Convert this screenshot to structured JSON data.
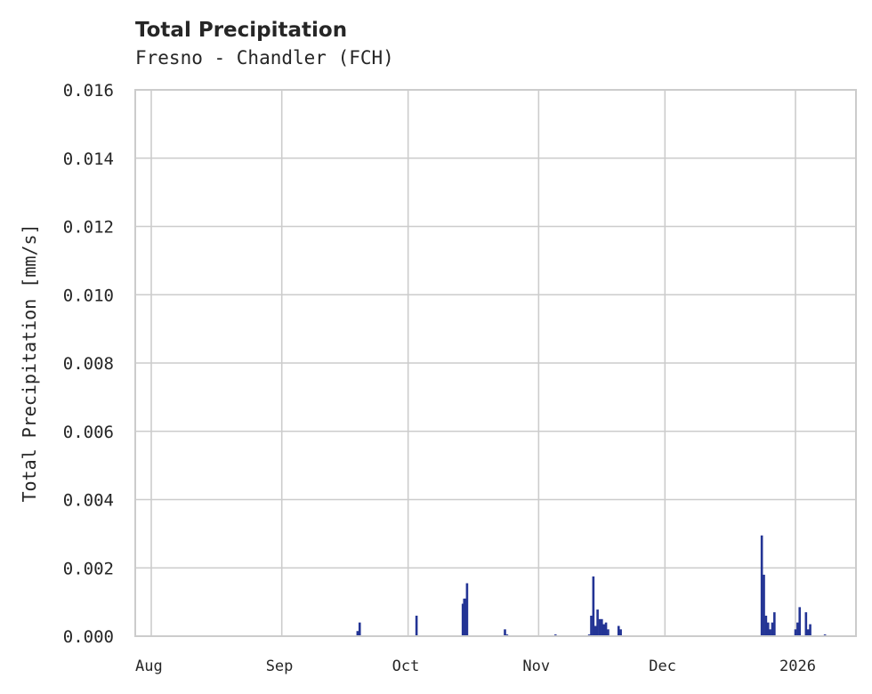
{
  "chart_data": {
    "type": "bar",
    "title": "Total Precipitation",
    "subtitle": "Fresno - Chandler (FCH)",
    "xlabel": "",
    "ylabel": "Total Precipitation [mm/s]",
    "ylim": [
      0,
      0.016
    ],
    "xlim": [
      "2025-07-28",
      "2026-01-14"
    ],
    "grid": true,
    "legend": null,
    "color": "#233495",
    "y_ticks": [
      "0.000",
      "0.002",
      "0.004",
      "0.006",
      "0.008",
      "0.010",
      "0.012",
      "0.014",
      "0.016"
    ],
    "x_ticks": [
      {
        "label": "Aug",
        "date": "2025-08-01"
      },
      {
        "label": "Sep",
        "date": "2025-09-01"
      },
      {
        "label": "Oct",
        "date": "2025-10-01"
      },
      {
        "label": "Nov",
        "date": "2025-11-01"
      },
      {
        "label": "Dec",
        "date": "2025-12-01"
      },
      {
        "label": "2026",
        "date": "2026-01-01"
      }
    ],
    "series": [
      {
        "name": "Total Precipitation",
        "points": [
          {
            "date": "2025-09-19",
            "value": 0.00015
          },
          {
            "date": "2025-09-19T12",
            "value": 0.0004
          },
          {
            "date": "2025-10-03",
            "value": 0.0006
          },
          {
            "date": "2025-10-14",
            "value": 0.00095
          },
          {
            "date": "2025-10-14T08",
            "value": 0.0011
          },
          {
            "date": "2025-10-14T16",
            "value": 0.0011
          },
          {
            "date": "2025-10-15",
            "value": 0.00155
          },
          {
            "date": "2025-10-24",
            "value": 0.0002
          },
          {
            "date": "2025-10-24T12",
            "value": 5e-05
          },
          {
            "date": "2025-11-05",
            "value": 5e-05
          },
          {
            "date": "2025-11-13",
            "value": 5e-05
          },
          {
            "date": "2025-11-13T12",
            "value": 0.0006
          },
          {
            "date": "2025-11-14",
            "value": 0.00175
          },
          {
            "date": "2025-11-14T12",
            "value": 0.0003
          },
          {
            "date": "2025-11-15",
            "value": 0.00078
          },
          {
            "date": "2025-11-15T12",
            "value": 0.0005
          },
          {
            "date": "2025-11-16",
            "value": 0.0005
          },
          {
            "date": "2025-11-16T12",
            "value": 0.00035
          },
          {
            "date": "2025-11-17",
            "value": 0.0004
          },
          {
            "date": "2025-11-17T12",
            "value": 0.0002
          },
          {
            "date": "2025-11-20",
            "value": 0.0003
          },
          {
            "date": "2025-11-20T12",
            "value": 0.0002
          },
          {
            "date": "2025-12-24",
            "value": 0.00295
          },
          {
            "date": "2025-12-24T12",
            "value": 0.0018
          },
          {
            "date": "2025-12-25",
            "value": 0.0006
          },
          {
            "date": "2025-12-25T12",
            "value": 0.0004
          },
          {
            "date": "2025-12-26",
            "value": 0.0002
          },
          {
            "date": "2025-12-26T12",
            "value": 0.0004
          },
          {
            "date": "2025-12-27",
            "value": 0.0007
          },
          {
            "date": "2026-01-01",
            "value": 0.0002
          },
          {
            "date": "2026-01-01T12",
            "value": 0.0004
          },
          {
            "date": "2026-01-02",
            "value": 0.00085
          },
          {
            "date": "2026-01-03T12",
            "value": 0.0007
          },
          {
            "date": "2026-01-04",
            "value": 0.0002
          },
          {
            "date": "2026-01-04T12",
            "value": 0.00035
          },
          {
            "date": "2026-01-08",
            "value": 5e-05
          }
        ]
      }
    ]
  }
}
